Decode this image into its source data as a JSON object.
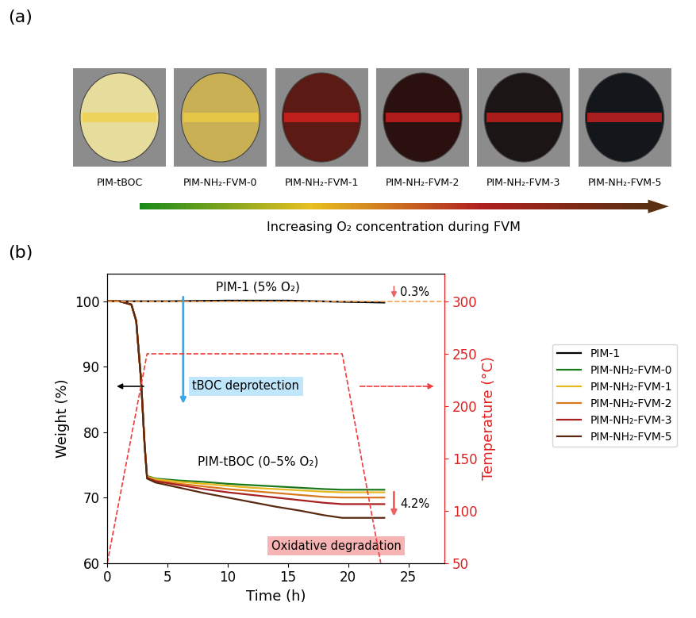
{
  "panel_a": {
    "label": "(a)",
    "samples": [
      "PIM-tBOC",
      "PIM-NH₂-FVM-0",
      "PIM-NH₂-FVM-1",
      "PIM-NH₂-FVM-2",
      "PIM-NH₂-FVM-3",
      "PIM-NH₂-FVM-5"
    ],
    "colors": [
      "#e6dc9c",
      "#c9b055",
      "#5c1a14",
      "#2b1010",
      "#1c1515",
      "#13161a"
    ],
    "arrow_text": "Increasing O₂ concentration during FVM"
  },
  "chart_data": {
    "type": "line",
    "panel_label": "(b)",
    "x_label": "Time (h)",
    "y_label": "Weight (%)",
    "y2_label": "Temperature (°C)",
    "xlim": [
      0,
      28
    ],
    "xticks": [
      0,
      5,
      10,
      15,
      20,
      25
    ],
    "ylim": [
      60,
      104.2
    ],
    "yticks": [
      60,
      70,
      80,
      90,
      100
    ],
    "y2lim": [
      50,
      326.5
    ],
    "y2ticks": [
      50,
      100,
      150,
      200,
      250,
      300
    ],
    "legend": "center left",
    "series": [
      {
        "name": "PIM-1",
        "color": "#000000",
        "line_style": "solid",
        "x": [
          0,
          5,
          10,
          15,
          20,
          23
        ],
        "values": [
          100,
          100,
          100.1,
          100.1,
          99.9,
          99.8
        ]
      },
      {
        "name": "PIM-NH₂-FVM-0",
        "color": "#1a7a1a",
        "line_style": "solid",
        "x": [
          0,
          1,
          2,
          2.4,
          2.8,
          3.1,
          3.3,
          4,
          6,
          8,
          10,
          12,
          14,
          16,
          18,
          19.5,
          21,
          23
        ],
        "values": [
          100,
          100,
          99.5,
          97,
          88,
          78,
          73.3,
          72.9,
          72.6,
          72.4,
          72.1,
          71.9,
          71.7,
          71.5,
          71.3,
          71.2,
          71.2,
          71.2
        ]
      },
      {
        "name": "PIM-NH₂-FVM-1",
        "color": "#e8b820",
        "line_style": "solid",
        "x": [
          0,
          1,
          2,
          2.4,
          2.8,
          3.1,
          3.3,
          4,
          6,
          8,
          10,
          12,
          14,
          16,
          18,
          19.5,
          21,
          23
        ],
        "values": [
          100,
          100,
          99.5,
          97,
          88,
          78,
          73.2,
          72.8,
          72.4,
          72.1,
          71.8,
          71.5,
          71.3,
          71.1,
          70.9,
          70.8,
          70.8,
          70.8
        ]
      },
      {
        "name": "PIM-NH₂-FVM-2",
        "color": "#d9781e",
        "line_style": "solid",
        "x": [
          0,
          1,
          2,
          2.4,
          2.8,
          3.1,
          3.3,
          4,
          6,
          8,
          10,
          12,
          14,
          16,
          18,
          19.5,
          21,
          23
        ],
        "values": [
          100,
          100,
          99.5,
          97,
          88,
          78,
          73.1,
          72.6,
          72.1,
          71.7,
          71.3,
          71.0,
          70.7,
          70.4,
          70.1,
          70.0,
          70.0,
          70.0
        ]
      },
      {
        "name": "PIM-NH₂-FVM-3",
        "color": "#a82020",
        "line_style": "solid",
        "x": [
          0,
          1,
          2,
          2.4,
          2.8,
          3.1,
          3.3,
          4,
          6,
          8,
          10,
          12,
          14,
          16,
          18,
          19.5,
          21,
          23
        ],
        "values": [
          100,
          100,
          99.5,
          97,
          88,
          78,
          73.0,
          72.5,
          71.9,
          71.3,
          70.8,
          70.4,
          70.0,
          69.6,
          69.2,
          69.0,
          69.0,
          69.0
        ]
      },
      {
        "name": "PIM-NH₂-FVM-5",
        "color": "#5a2a10",
        "line_style": "solid",
        "x": [
          0,
          1,
          2,
          2.4,
          2.8,
          3.1,
          3.3,
          4,
          6,
          8,
          10,
          12,
          14,
          16,
          18,
          19.5,
          21,
          23
        ],
        "values": [
          100,
          100,
          99.5,
          97,
          88,
          78,
          72.9,
          72.3,
          71.5,
          70.7,
          70.0,
          69.3,
          68.6,
          68.0,
          67.3,
          66.9,
          66.9,
          66.9
        ]
      },
      {
        "color": "#f5a050",
        "line_style": "dashed",
        "axis": "y2",
        "x": [
          0,
          28
        ],
        "values": [
          300,
          300
        ]
      },
      {
        "color": "#f03c3c",
        "line_style": "dashed",
        "axis": "y2",
        "x": [
          0,
          3.3,
          19.5,
          22.7
        ],
        "values": [
          50,
          250,
          250,
          50
        ]
      }
    ],
    "annotations": {
      "pim1": "PIM-1 (5% O₂)",
      "pim1_loss": "0.3%",
      "deprotection": "tBOC deprotection",
      "tboc": "PIM-tBOC (0–5% O₂)",
      "loss": "4.2%",
      "degradation": "Oxidative degradation"
    }
  }
}
